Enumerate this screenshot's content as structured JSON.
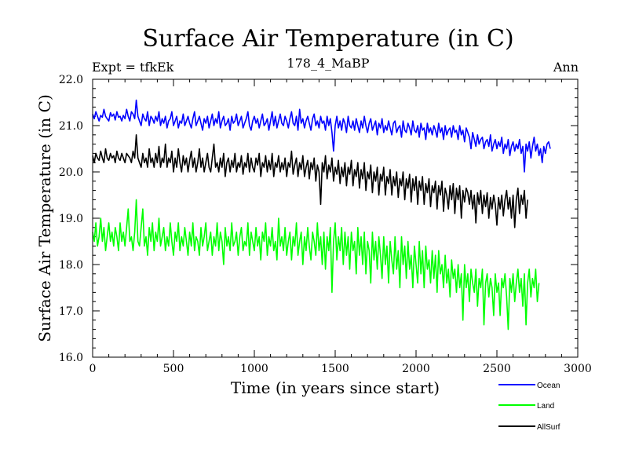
{
  "chart_data": {
    "type": "line",
    "title": "Surface Air Temperature (in C)",
    "subtitle_left": "Expt = tfkEk",
    "subtitle_center": "178_4_MaBP",
    "subtitle_right": "Ann",
    "xlabel": "Time (in years since start)",
    "ylabel": "Surface Air Temperature (in C)",
    "xlim": [
      0,
      3000
    ],
    "ylim": [
      16.0,
      22.0
    ],
    "xticks": [
      "0",
      "500",
      "1000",
      "1500",
      "2000",
      "2500",
      "3000"
    ],
    "yticks": [
      "16.0",
      "17.0",
      "18.0",
      "19.0",
      "20.0",
      "21.0",
      "22.0"
    ],
    "grid": false,
    "legend_position": "bottom-right",
    "x_step_years": 10,
    "series": [
      {
        "name": "Ocean",
        "color": "#0000ff",
        "values": [
          21.25,
          21.15,
          21.3,
          21.2,
          21.1,
          21.22,
          21.18,
          21.35,
          21.2,
          21.15,
          21.1,
          21.28,
          21.2,
          21.25,
          21.12,
          21.3,
          21.18,
          21.2,
          21.1,
          21.22,
          21.15,
          21.35,
          21.2,
          21.1,
          21.3,
          21.25,
          21.15,
          21.55,
          21.2,
          21.1,
          21.0,
          21.25,
          21.15,
          21.1,
          21.3,
          21.0,
          21.2,
          21.15,
          21.05,
          21.2,
          21.1,
          21.3,
          21.0,
          21.15,
          21.05,
          21.2,
          20.95,
          21.1,
          21.15,
          21.3,
          21.0,
          21.1,
          21.2,
          20.95,
          21.1,
          21.05,
          21.25,
          21.0,
          21.1,
          21.2,
          21.05,
          20.95,
          21.15,
          21.3,
          21.0,
          21.1,
          21.2,
          21.05,
          20.9,
          21.15,
          21.05,
          21.2,
          20.95,
          21.1,
          21.25,
          21.0,
          21.15,
          21.05,
          21.3,
          20.95,
          21.1,
          21.2,
          21.0,
          21.05,
          21.15,
          20.9,
          21.2,
          21.05,
          21.1,
          21.25,
          21.0,
          21.1,
          21.2,
          20.95,
          21.05,
          21.15,
          21.3,
          21.0,
          20.9,
          21.1,
          21.2,
          21.05,
          21.15,
          20.95,
          21.1,
          21.25,
          21.0,
          21.05,
          21.15,
          20.9,
          21.1,
          21.3,
          21.0,
          21.2,
          20.95,
          21.1,
          21.25,
          21.05,
          21.0,
          21.2,
          21.1,
          20.95,
          21.15,
          21.3,
          21.05,
          21.0,
          21.2,
          20.9,
          21.35,
          21.05,
          21.15,
          20.95,
          21.1,
          21.2,
          21.05,
          20.9,
          21.15,
          21.25,
          21.0,
          21.1,
          20.95,
          21.2,
          21.05,
          21.1,
          20.9,
          21.2,
          21.0,
          21.15,
          20.85,
          20.45,
          21.0,
          21.2,
          20.95,
          21.1,
          20.9,
          21.15,
          21.05,
          20.85,
          21.2,
          21.0,
          20.95,
          21.1,
          20.9,
          21.15,
          21.0,
          20.85,
          21.1,
          20.95,
          21.2,
          21.0,
          20.85,
          21.05,
          21.15,
          20.9,
          21.0,
          21.1,
          20.8,
          21.05,
          20.95,
          21.15,
          20.85,
          21.0,
          20.9,
          21.1,
          20.95,
          20.8,
          21.05,
          21.1,
          20.85,
          20.95,
          21.0,
          20.75,
          21.1,
          20.9,
          20.85,
          21.05,
          20.95,
          20.8,
          21.1,
          20.9,
          20.85,
          21.0,
          20.75,
          21.05,
          20.9,
          20.95,
          20.7,
          21.05,
          20.85,
          20.95,
          20.8,
          21.0,
          20.9,
          20.75,
          21.05,
          20.85,
          20.95,
          20.7,
          21.0,
          20.8,
          20.9,
          20.95,
          20.75,
          21.0,
          20.85,
          20.9,
          20.7,
          21.0,
          20.8,
          20.9,
          20.65,
          20.95,
          20.85,
          20.75,
          20.5,
          20.85,
          20.7,
          20.55,
          20.8,
          20.6,
          20.7,
          20.75,
          20.5,
          20.65,
          20.7,
          20.55,
          20.8,
          20.45,
          20.6,
          20.7,
          20.5,
          20.65,
          20.55,
          20.75,
          20.4,
          20.6,
          20.5,
          20.7,
          20.35,
          20.55,
          20.65,
          20.45,
          20.6,
          20.5,
          20.7,
          20.4,
          20.55,
          20.0,
          20.6,
          20.45,
          20.65,
          20.3,
          20.55,
          20.75,
          20.45,
          20.6,
          20.35,
          20.5,
          20.2,
          20.55,
          20.4,
          20.6,
          20.65,
          20.5
        ]
      },
      {
        "name": "Land",
        "color": "#00ff00",
        "values": [
          18.7,
          18.5,
          18.9,
          18.4,
          18.6,
          19.0,
          18.5,
          18.8,
          18.3,
          18.6,
          18.9,
          18.5,
          18.7,
          18.4,
          18.8,
          18.6,
          18.3,
          18.9,
          18.5,
          18.7,
          18.4,
          18.8,
          19.2,
          18.5,
          18.6,
          18.3,
          18.7,
          19.4,
          18.5,
          18.4,
          18.8,
          19.2,
          18.4,
          18.6,
          18.2,
          18.8,
          18.5,
          18.9,
          18.3,
          18.7,
          18.5,
          19.0,
          18.4,
          18.6,
          18.8,
          18.3,
          18.6,
          18.4,
          18.9,
          18.5,
          18.2,
          18.7,
          18.5,
          18.9,
          18.3,
          18.6,
          18.4,
          18.8,
          18.5,
          18.2,
          18.7,
          18.4,
          18.9,
          18.3,
          18.6,
          18.5,
          18.2,
          18.8,
          18.4,
          18.6,
          18.9,
          18.3,
          18.5,
          18.7,
          18.2,
          18.6,
          18.4,
          18.9,
          18.3,
          18.7,
          18.5,
          18.0,
          18.8,
          18.4,
          18.6,
          18.3,
          18.9,
          18.4,
          18.5,
          18.7,
          18.2,
          18.6,
          18.8,
          18.3,
          18.5,
          18.4,
          18.9,
          18.2,
          18.7,
          18.5,
          18.3,
          18.8,
          18.4,
          18.6,
          18.1,
          18.7,
          18.5,
          18.9,
          18.2,
          18.6,
          18.4,
          18.8,
          18.3,
          18.5,
          18.1,
          19.0,
          18.4,
          18.6,
          18.3,
          18.8,
          18.2,
          18.5,
          18.7,
          18.1,
          18.6,
          18.4,
          18.9,
          18.2,
          18.5,
          18.7,
          18.0,
          18.6,
          18.3,
          18.8,
          18.4,
          18.1,
          18.7,
          18.5,
          18.2,
          18.9,
          18.3,
          18.6,
          18.0,
          18.7,
          17.9,
          18.6,
          18.3,
          18.8,
          17.4,
          18.5,
          18.9,
          18.1,
          18.6,
          18.3,
          18.8,
          18.0,
          18.7,
          18.2,
          18.6,
          17.9,
          18.7,
          18.3,
          18.5,
          17.8,
          18.8,
          18.2,
          18.6,
          18.0,
          18.7,
          17.8,
          18.5,
          18.3,
          17.6,
          18.7,
          18.1,
          18.5,
          17.9,
          18.6,
          18.2,
          17.7,
          18.6,
          18.0,
          18.4,
          17.6,
          18.5,
          18.1,
          17.8,
          18.6,
          17.9,
          18.3,
          17.5,
          18.6,
          18.0,
          18.4,
          17.7,
          18.5,
          17.9,
          18.2,
          17.5,
          18.4,
          18.0,
          17.6,
          18.5,
          17.8,
          18.3,
          17.5,
          18.4,
          17.9,
          18.1,
          17.6,
          18.3,
          17.7,
          18.2,
          17.4,
          18.3,
          17.8,
          18.0,
          17.5,
          18.2,
          17.6,
          17.9,
          17.3,
          18.1,
          17.7,
          17.9,
          17.4,
          18.0,
          17.5,
          17.8,
          16.8,
          18.0,
          17.5,
          17.8,
          17.2,
          17.9,
          17.6,
          17.4,
          17.9,
          17.1,
          17.7,
          17.5,
          17.9,
          16.7,
          17.6,
          17.8,
          17.3,
          17.7,
          17.5,
          16.9,
          17.8,
          17.4,
          17.6,
          16.9,
          17.7,
          17.5,
          17.8,
          17.3,
          16.6,
          17.7,
          17.4,
          17.8,
          17.2,
          17.6,
          17.9,
          17.4,
          17.7,
          17.1,
          17.8,
          16.7,
          17.6,
          17.9,
          17.3,
          17.7,
          17.5,
          17.9,
          17.2,
          17.6
        ]
      },
      {
        "name": "AllSurf",
        "color": "#000000",
        "values": [
          20.35,
          20.2,
          20.4,
          20.3,
          20.25,
          20.45,
          20.3,
          20.2,
          20.5,
          20.3,
          20.25,
          20.4,
          20.3,
          20.35,
          20.2,
          20.45,
          20.3,
          20.25,
          20.4,
          20.3,
          20.2,
          20.4,
          20.35,
          20.3,
          20.2,
          20.45,
          20.3,
          20.8,
          20.3,
          20.2,
          20.1,
          20.4,
          20.2,
          20.3,
          20.1,
          20.5,
          20.2,
          20.3,
          20.1,
          20.4,
          20.2,
          20.55,
          20.1,
          20.3,
          20.2,
          20.6,
          20.1,
          20.3,
          20.2,
          20.45,
          20.0,
          20.3,
          20.1,
          20.5,
          20.2,
          20.0,
          20.35,
          20.15,
          20.3,
          20.0,
          20.25,
          20.45,
          20.1,
          20.3,
          20.0,
          20.2,
          20.5,
          20.1,
          20.3,
          20.0,
          20.2,
          20.4,
          20.1,
          20.0,
          20.3,
          20.6,
          20.1,
          20.2,
          20.0,
          20.3,
          20.1,
          20.4,
          19.9,
          20.2,
          20.3,
          20.0,
          20.25,
          20.1,
          20.4,
          20.0,
          20.2,
          20.1,
          20.35,
          19.95,
          20.2,
          20.1,
          20.4,
          20.0,
          20.3,
          20.1,
          20.0,
          20.3,
          20.15,
          20.4,
          19.9,
          20.2,
          20.1,
          20.35,
          20.0,
          20.25,
          20.05,
          20.4,
          19.9,
          20.2,
          20.1,
          20.35,
          20.0,
          20.2,
          20.05,
          20.3,
          19.9,
          20.2,
          20.1,
          20.45,
          19.95,
          20.15,
          20.3,
          19.9,
          20.2,
          20.05,
          20.35,
          19.9,
          20.1,
          20.25,
          19.85,
          20.2,
          20.05,
          20.3,
          19.8,
          20.15,
          20.0,
          19.3,
          20.2,
          20.0,
          20.35,
          19.85,
          20.15,
          20.0,
          20.3,
          19.8,
          20.1,
          19.95,
          20.25,
          19.75,
          20.1,
          19.9,
          20.2,
          19.7,
          20.1,
          19.95,
          20.25,
          19.7,
          20.05,
          19.9,
          20.2,
          19.65,
          20.05,
          19.85,
          20.2,
          19.6,
          20.0,
          19.85,
          20.15,
          19.55,
          20.0,
          19.8,
          20.1,
          19.5,
          19.95,
          19.8,
          20.1,
          19.5,
          19.9,
          19.75,
          20.05,
          19.5,
          19.9,
          19.7,
          20.0,
          19.45,
          19.85,
          19.7,
          20.0,
          19.4,
          19.85,
          19.65,
          19.95,
          19.35,
          19.85,
          19.6,
          19.9,
          19.3,
          19.8,
          19.6,
          19.9,
          19.3,
          19.75,
          19.55,
          19.85,
          19.25,
          19.7,
          19.55,
          19.8,
          19.2,
          19.7,
          19.5,
          19.8,
          19.15,
          19.65,
          19.5,
          19.2,
          19.7,
          19.4,
          19.75,
          19.1,
          19.65,
          19.4,
          19.7,
          19.0,
          19.6,
          19.35,
          19.65,
          19.55,
          19.3,
          19.6,
          19.2,
          19.5,
          18.9,
          19.55,
          19.3,
          19.6,
          19.1,
          19.5,
          19.25,
          19.55,
          19.0,
          19.45,
          19.2,
          19.5,
          19.3,
          18.85,
          19.45,
          19.2,
          19.5,
          19.05,
          19.4,
          19.6,
          19.2,
          19.45,
          19.0,
          19.5,
          18.8,
          19.4,
          19.65,
          19.1,
          19.5,
          19.3,
          19.6,
          19.0,
          19.4
        ]
      }
    ]
  }
}
